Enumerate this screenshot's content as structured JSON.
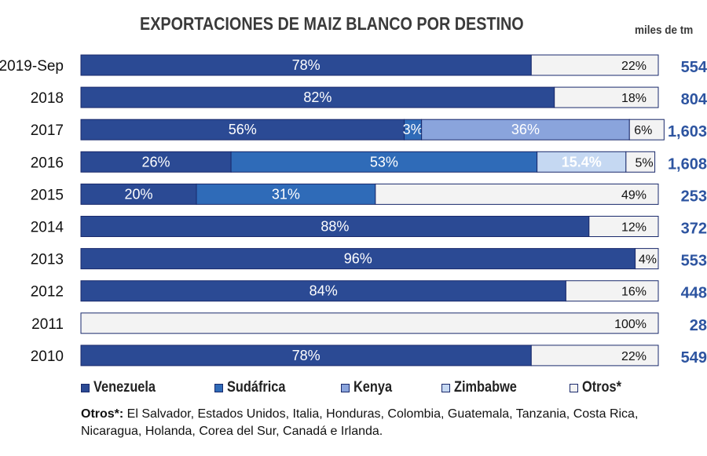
{
  "title": "EXPORTACIONES DE MAIZ BLANCO  POR DESTINO",
  "unit_label": "miles de tm",
  "colors": {
    "Venezuela": "#2b4a94",
    "Sudáfrica": "#2f6bb8",
    "Kenya": "#8aa4dc",
    "Zimbabwe": "#c5d8f2",
    "Otros*": "#f3f3f3",
    "total_text": "#2d54a0",
    "bar_border": "#1a2a6c"
  },
  "legend": [
    {
      "key": "Venezuela",
      "label": "Venezuela"
    },
    {
      "key": "Sudáfrica",
      "label": "Sudáfrica"
    },
    {
      "key": "Kenya",
      "label": "Kenya"
    },
    {
      "key": "Zimbabwe",
      "label": "Zimbabwe"
    },
    {
      "key": "Otros*",
      "label": "Otros*"
    }
  ],
  "footnote": {
    "label": "Otros*:",
    "text": " El Salvador, Estados Unidos, Italia, Honduras, Colombia, Guatemala, Tanzania, Costa Rica, Nicaragua, Holanda,    Corea del Sur, Canadá e Irlanda."
  },
  "chart_data": {
    "type": "bar",
    "orientation": "horizontal",
    "stacked": "percent",
    "categories": [
      "2019-Sep",
      "2018",
      "2017",
      "2016",
      "2015",
      "2014",
      "2013",
      "2012",
      "2011",
      "2010"
    ],
    "series": [
      {
        "name": "Venezuela",
        "values": [
          78,
          82,
          56,
          26,
          20,
          88,
          96,
          84,
          0,
          78
        ],
        "labels": [
          "78%",
          "82%",
          "56%",
          "26%",
          "20%",
          "88%",
          "96%",
          "84%",
          "",
          "78%"
        ]
      },
      {
        "name": "Sudáfrica",
        "values": [
          0,
          0,
          3,
          53,
          31,
          0,
          0,
          0,
          0,
          0
        ],
        "labels": [
          "",
          "",
          "3%",
          "53%",
          "31%",
          "",
          "",
          "",
          "",
          ""
        ]
      },
      {
        "name": "Kenya",
        "values": [
          0,
          0,
          36,
          0,
          0,
          0,
          0,
          0,
          0,
          0
        ],
        "labels": [
          "",
          "",
          "36%",
          "",
          "",
          "",
          "",
          "",
          "",
          ""
        ]
      },
      {
        "name": "Zimbabwe",
        "values": [
          0,
          0,
          0,
          15.4,
          0,
          0,
          0,
          0,
          0,
          0
        ],
        "labels": [
          "",
          "",
          "",
          "15.4%",
          "",
          "",
          "",
          "",
          "",
          ""
        ]
      },
      {
        "name": "Otros*",
        "values": [
          22,
          18,
          6,
          5,
          49,
          12,
          4,
          16,
          100,
          22
        ],
        "labels": [
          "22%",
          "18%",
          "6%",
          "5%",
          "49%",
          "12%",
          "4%",
          "16%",
          "100%",
          "22%"
        ]
      }
    ],
    "totals": [
      "554",
      "804",
      "1,603",
      "1,608",
      "253",
      "372",
      "553",
      "448",
      "28",
      "549"
    ],
    "xlim": [
      0,
      100
    ],
    "grid": false,
    "legend_position": "bottom"
  }
}
